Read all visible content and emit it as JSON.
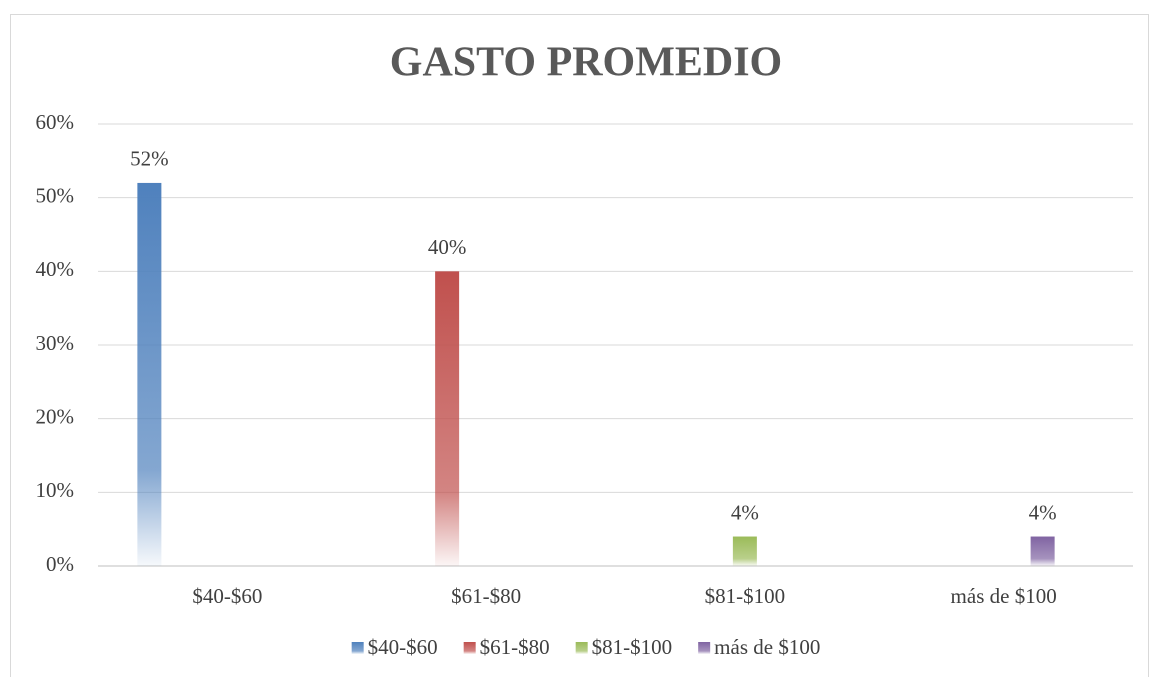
{
  "chart_data": {
    "type": "bar",
    "title": "GASTO PROMEDIO",
    "categories": [
      "$40-$60",
      "$61-$80",
      "$81-$100",
      "más de $100"
    ],
    "series": [
      {
        "name": "$40-$60",
        "color": "#4f81bd",
        "values": [
          52,
          null,
          null,
          null
        ],
        "value_labels": [
          "52%",
          null,
          null,
          null
        ]
      },
      {
        "name": "$61-$80",
        "color": "#c0504d",
        "values": [
          null,
          40,
          null,
          null
        ],
        "value_labels": [
          null,
          "40%",
          null,
          null
        ]
      },
      {
        "name": "$81-$100",
        "color": "#9bbb59",
        "values": [
          null,
          null,
          4,
          null
        ],
        "value_labels": [
          null,
          null,
          "4%",
          null
        ]
      },
      {
        "name": "más de $100",
        "color": "#8064a2",
        "values": [
          null,
          null,
          null,
          4
        ],
        "value_labels": [
          null,
          null,
          null,
          "4%"
        ]
      }
    ],
    "ylim": [
      0,
      60
    ],
    "yticks": [
      {
        "value": 0,
        "label": "0%"
      },
      {
        "value": 10,
        "label": "10%"
      },
      {
        "value": 20,
        "label": "20%"
      },
      {
        "value": 30,
        "label": "30%"
      },
      {
        "value": 40,
        "label": "40%"
      },
      {
        "value": 50,
        "label": "50%"
      },
      {
        "value": 60,
        "label": "60%"
      }
    ],
    "grid": true,
    "legend": "bottom"
  }
}
